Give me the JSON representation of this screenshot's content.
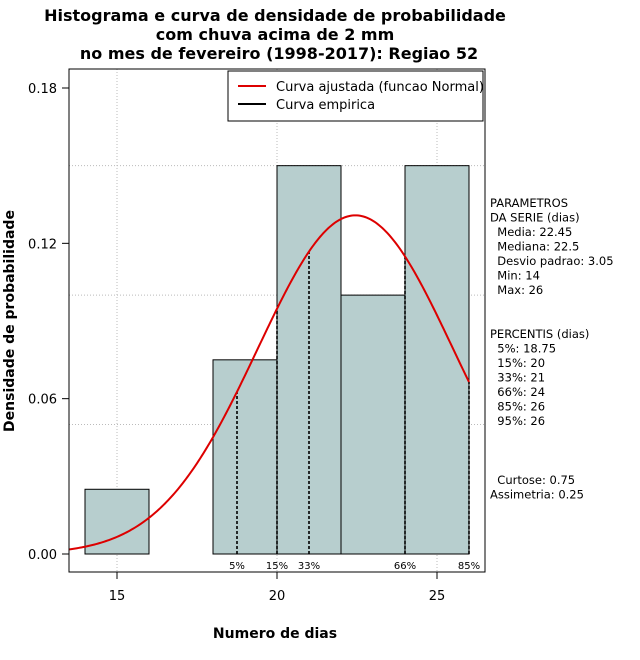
{
  "chart_data": {
    "type": "bar",
    "title_lines": [
      "Histograma e curva de densidade de probabilidade",
      "com chuva acima de 2 mm",
      "no mes de fevereiro (1998-2017): Regiao 52"
    ],
    "xlabel": "Numero de dias",
    "ylabel": "Densidade de probabilidade",
    "xlim": [
      13.5,
      26.5
    ],
    "ylim": [
      0,
      0.186
    ],
    "x_ticks": [
      15,
      20,
      25
    ],
    "x_tick_labels": [
      "15",
      "20",
      "25"
    ],
    "y_ticks": [
      0.0,
      0.06,
      0.12,
      0.18
    ],
    "y_tick_labels": [
      "0.00",
      "0.06",
      "0.12",
      "0.18"
    ],
    "bins": [
      {
        "x0": 14,
        "x1": 16,
        "density": 0.025
      },
      {
        "x0": 16,
        "x1": 18,
        "density": 0.0
      },
      {
        "x0": 18,
        "x1": 20,
        "density": 0.075
      },
      {
        "x0": 20,
        "x1": 22,
        "density": 0.15
      },
      {
        "x0": 22,
        "x1": 24,
        "density": 0.1
      },
      {
        "x0": 24,
        "x1": 26,
        "density": 0.15
      }
    ],
    "series": [
      {
        "name": "Curva ajustada (funcao Normal)",
        "color": "#dd0000",
        "kind": "normal",
        "mean": 22.45,
        "sd": 3.05
      },
      {
        "name": "Curva empirica",
        "color": "#000000",
        "kind": "empirical"
      }
    ],
    "percentile_markers": [
      {
        "x": 18.75,
        "label": "5%"
      },
      {
        "x": 20,
        "label": "15%"
      },
      {
        "x": 21,
        "label": "33%"
      },
      {
        "x": 24,
        "label": "66%"
      },
      {
        "x": 26,
        "label": "85%"
      }
    ],
    "grid": true,
    "legend_position": "top-right",
    "bar_color": "#b7cece",
    "curve_color": "#dd0000",
    "stats_block": {
      "parametros": [
        "PARAMETROS",
        "DA SERIE (dias)",
        "  Media: 22.45",
        "  Mediana: 22.5",
        "  Desvio padrao: 3.05",
        "  Min: 14",
        "  Max: 26"
      ],
      "percentis": [
        "PERCENTIS (dias)",
        "  5%: 18.75",
        "  15%: 20",
        "  33%: 21",
        "  66%: 24",
        "  85%: 26",
        "  95%: 26"
      ],
      "shape": [
        "  Curtose: 0.75",
        "Assimetria: 0.25"
      ]
    }
  }
}
